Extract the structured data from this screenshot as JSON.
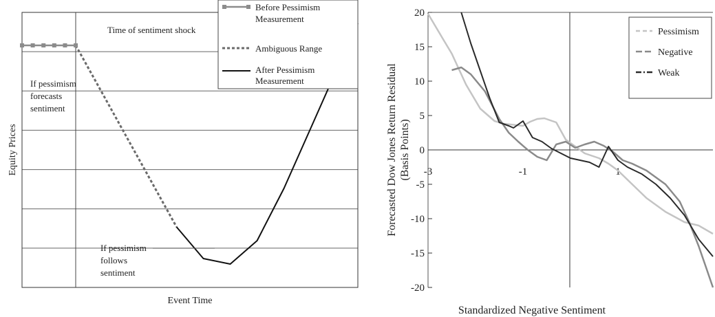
{
  "chart_data": [
    {
      "type": "line",
      "xlabel": "Event Time",
      "ylabel": "Equity Prices",
      "annotations": {
        "shock": "Time of sentiment shock",
        "forecasts": [
          "If pessimism",
          "forecasts",
          "sentiment"
        ],
        "follows": [
          "If pessimism",
          "follows",
          "sentiment"
        ]
      },
      "legend_position": "top-right",
      "legend": [
        {
          "label_lines": [
            "Before Pessimism",
            "Measurement"
          ],
          "style": "square-markers",
          "color": "#8c8c8c"
        },
        {
          "label_lines": [
            "Ambiguous Range"
          ],
          "style": "dashed",
          "color": "#6a6a6a"
        },
        {
          "label_lines": [
            "After Pessimism",
            "Measurement"
          ],
          "style": "solid",
          "color": "#111111"
        }
      ],
      "grid": {
        "horizontal": true,
        "vertical_at_shock": true
      },
      "series": [
        {
          "name": "Before Pessimism Measurement",
          "x": [
            0,
            0.16
          ],
          "y": [
            0.88,
            0.88
          ]
        },
        {
          "name": "Ambiguous Range",
          "x": [
            0.16,
            0.26,
            0.36,
            0.46
          ],
          "y": [
            0.88,
            0.66,
            0.44,
            0.22
          ]
        },
        {
          "name": "After Pessimism Measurement",
          "x": [
            0.46,
            0.54,
            0.62,
            0.7,
            0.78,
            0.86,
            0.94,
            1.0
          ],
          "y": [
            0.22,
            0.105,
            0.085,
            0.17,
            0.36,
            0.58,
            0.8,
            0.96
          ]
        }
      ]
    },
    {
      "type": "line",
      "xlabel": "Standardized Negative Sentiment",
      "ylabel": "Forecasted Dow Jones Return Residual (Basis Points)",
      "ylabel_lines": [
        "Forecasted Dow Jones Return Residual",
        "(Basis Points)"
      ],
      "ylim": [
        -20,
        20
      ],
      "xlim": [
        -3,
        3
      ],
      "y_ticks": [
        "20",
        "15",
        "10",
        "5",
        "0",
        "-5",
        "-10",
        "-15",
        "-20"
      ],
      "x_ticks": [
        "-3",
        "-1",
        "1"
      ],
      "legend_position": "top-right",
      "series": [
        {
          "name": "Pessimism",
          "color": "#c4c4c4",
          "style": "dash",
          "x": [
            -3.0,
            -2.7,
            -2.5,
            -2.2,
            -1.9,
            -1.6,
            -1.4,
            -1.0,
            -0.85,
            -0.7,
            -0.55,
            -0.3,
            -0.1,
            0.3,
            0.6,
            0.8,
            1.0,
            1.3,
            1.6,
            2.0,
            2.4,
            2.7,
            3.0
          ],
          "y": [
            19.8,
            16.3,
            14,
            9.5,
            6,
            4.2,
            3.8,
            3.5,
            4.1,
            4.5,
            4.6,
            4,
            1.5,
            -0.5,
            -1.2,
            -2,
            -3,
            -5,
            -7,
            -9,
            -10.5,
            -11,
            -12.2
          ]
        },
        {
          "name": "Negative",
          "color": "#8a8a8a",
          "style": "long-dash",
          "x": [
            -2.5,
            -2.3,
            -2.1,
            -1.8,
            -1.5,
            -1.3,
            -1.1,
            -0.9,
            -0.7,
            -0.5,
            -0.3,
            -0.1,
            0.1,
            0.3,
            0.5,
            0.7,
            0.9,
            1.1,
            1.3,
            1.6,
            2.0,
            2.3,
            2.5,
            2.7,
            2.85,
            3.0
          ],
          "y": [
            11.6,
            12,
            11,
            8.5,
            4.5,
            2.5,
            1.2,
            0,
            -1,
            -1.5,
            0.8,
            1.2,
            0.3,
            0.8,
            1.2,
            0.6,
            -0.3,
            -1.5,
            -2,
            -3,
            -5,
            -7.5,
            -10.5,
            -14,
            -17,
            -20
          ]
        },
        {
          "name": "Weak",
          "color": "#2a2a2a",
          "style": "dash-dot",
          "x": [
            -2.3,
            -2.1,
            -1.9,
            -1.7,
            -1.5,
            -1.3,
            -1.2,
            -1.0,
            -0.8,
            -0.6,
            -0.4,
            -0.2,
            0.0,
            0.2,
            0.4,
            0.6,
            0.8,
            1.0,
            1.2,
            1.5,
            1.8,
            2.1,
            2.4,
            2.7,
            3.0
          ],
          "y": [
            20,
            15.5,
            11.5,
            7.5,
            4,
            3.5,
            3.2,
            4.2,
            1.8,
            1.2,
            0.2,
            -0.5,
            -1.2,
            -1.5,
            -1.8,
            -2.5,
            0.5,
            -1.5,
            -2.5,
            -3.5,
            -5,
            -7,
            -9.5,
            -13,
            -15.5
          ]
        }
      ]
    }
  ]
}
